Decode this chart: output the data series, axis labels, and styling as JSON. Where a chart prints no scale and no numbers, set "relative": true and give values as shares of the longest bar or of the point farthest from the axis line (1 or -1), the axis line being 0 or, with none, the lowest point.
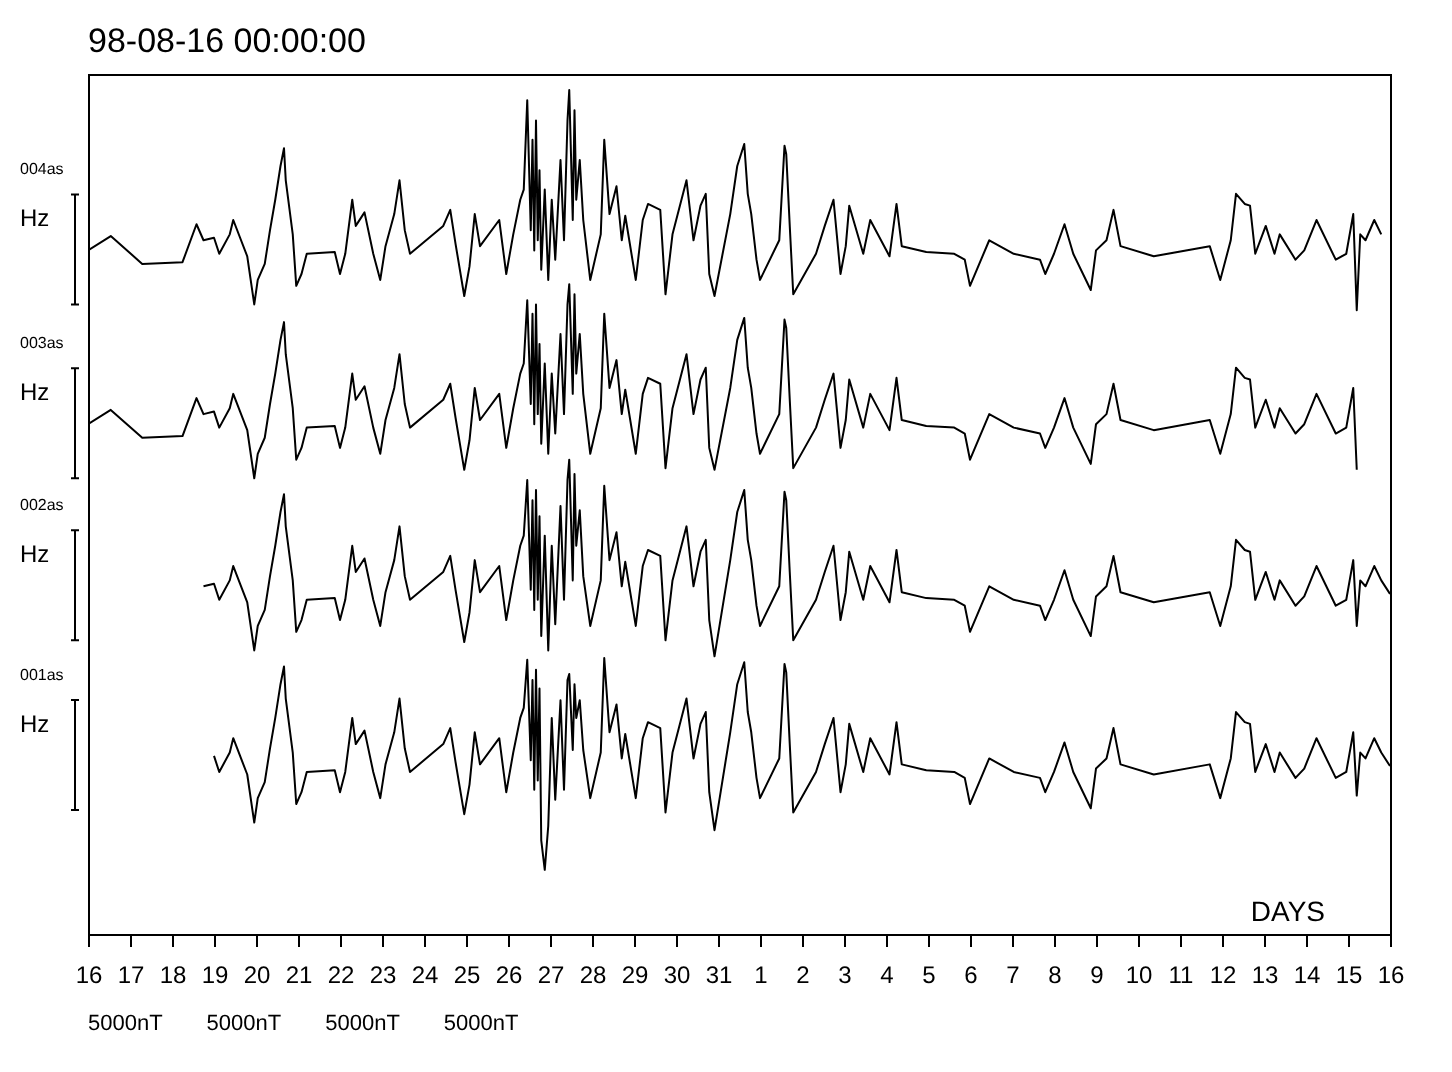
{
  "chart_data": {
    "type": "line",
    "title": "98-08-16 00:00:00",
    "xlabel": "DAYS",
    "relative": true,
    "annotations": [
      "004as",
      "Hz",
      "003as",
      "Hz",
      "002as",
      "Hz",
      "001as",
      "Hz",
      "5000nT",
      "5000nT",
      "5000nT",
      "5000nT"
    ],
    "xlim": [
      "--08-16",
      "--09-16"
    ],
    "xticks": [
      {
        "value": "--08-16",
        "label": "16"
      },
      {
        "value": "--08-17",
        "label": "17"
      },
      {
        "value": "--08-18",
        "label": "18"
      },
      {
        "value": "--08-19",
        "label": "19"
      },
      {
        "value": "--08-20",
        "label": "20"
      },
      {
        "value": "--08-21",
        "label": "21"
      },
      {
        "value": "--08-22",
        "label": "22"
      },
      {
        "value": "--08-23",
        "label": "23"
      },
      {
        "value": "--08-24",
        "label": "24"
      },
      {
        "value": "--08-25",
        "label": "25"
      },
      {
        "value": "--08-26",
        "label": "26"
      },
      {
        "value": "--08-27",
        "label": "27"
      },
      {
        "value": "--08-28",
        "label": "28"
      },
      {
        "value": "--08-29",
        "label": "29"
      },
      {
        "value": "--08-30",
        "label": "30"
      },
      {
        "value": "--08-31",
        "label": "31"
      },
      {
        "value": "--09-01",
        "label": "1"
      },
      {
        "value": "--09-02",
        "label": "2"
      },
      {
        "value": "--09-03",
        "label": "3"
      },
      {
        "value": "--09-04",
        "label": "4"
      },
      {
        "value": "--09-05",
        "label": "5"
      },
      {
        "value": "--09-06",
        "label": "6"
      },
      {
        "value": "--09-07",
        "label": "7"
      },
      {
        "value": "--09-08",
        "label": "8"
      },
      {
        "value": "--09-09",
        "label": "9"
      },
      {
        "value": "--09-10",
        "label": "10"
      },
      {
        "value": "--09-11",
        "label": "11"
      },
      {
        "value": "--09-12",
        "label": "12"
      },
      {
        "value": "--09-13",
        "label": "13"
      },
      {
        "value": "--09-14",
        "label": "14"
      },
      {
        "value": "--09-15",
        "label": "15"
      },
      {
        "value": "--09-16",
        "label": "16"
      }
    ],
    "x": [
      "--08-16T00:00",
      "--08-16T13:00",
      "--08-17T07:00",
      "--08-18T06:00",
      "--08-18T14:00",
      "--08-18T18:00",
      "--08-19T00:00",
      "--08-19T03:00",
      "--08-19T09:00",
      "--08-19T11:00",
      "--08-19T19:00",
      "--08-19T23:00",
      "--08-20T01:00",
      "--08-20T05:00",
      "--08-20T08:00",
      "--08-20T11:00",
      "--08-20T14:00",
      "--08-20T16:00",
      "--08-20T17:00",
      "--08-20T21:00",
      "--08-20T23:00",
      "--08-21T02:00",
      "--08-21T05:00",
      "--08-21T21:00",
      "--08-22T00:00",
      "--08-22T03:00",
      "--08-22T07:00",
      "--08-22T09:00",
      "--08-22T14:00",
      "--08-22T19:00",
      "--08-22T23:00",
      "--08-23T02:00",
      "--08-23T07:00",
      "--08-23T10:00",
      "--08-23T13:00",
      "--08-23T16:00",
      "--08-24T11:00",
      "--08-24T15:00",
      "--08-24T18:00",
      "--08-24T23:00",
      "--08-25T02:00",
      "--08-25T05:00",
      "--08-25T08:00",
      "--08-25T19:00",
      "--08-25T23:00",
      "--08-26T03:00",
      "--08-26T07:00",
      "--08-26T09:00",
      "--08-26T11:00",
      "--08-26T13:00",
      "--08-26T14:00",
      "--08-26T15:00",
      "--08-26T16:00",
      "--08-26T17:00",
      "--08-26T18:00",
      "--08-26T19:00",
      "--08-26T21:00",
      "--08-26T23:00",
      "--08-27T01:00",
      "--08-27T03:00",
      "--08-27T06:00",
      "--08-27T08:00",
      "--08-27T10:00",
      "--08-27T11:00",
      "--08-27T13:00",
      "--08-27T14:00",
      "--08-27T15:00",
      "--08-27T17:00",
      "--08-27T19:00",
      "--08-27T23:00",
      "--08-28T05:00",
      "--08-28T07:00",
      "--08-28T10:00",
      "--08-28T14:00",
      "--08-28T17:00",
      "--08-28T19:00",
      "--08-29T01:00",
      "--08-29T05:00",
      "--08-29T08:00",
      "--08-29T15:00",
      "--08-29T18:00",
      "--08-29T22:00",
      "--08-30T06:00",
      "--08-30T10:00",
      "--08-30T14:00",
      "--08-30T17:00",
      "--08-30T19:00",
      "--08-30T22:00",
      "--08-31T07:00",
      "--08-31T11:00",
      "--08-31T15:00",
      "--08-31T17:00",
      "--08-31T19:00",
      "--08-31T22:00",
      "--09-01T00:00",
      "--09-01T11:00",
      "--09-01T14:00",
      "--09-01T15:00",
      "--09-01T17:00",
      "--09-01T19:00",
      "--09-02T08:00",
      "--09-02T13:00",
      "--09-02T18:00",
      "--09-02T22:00",
      "--09-03T01:00",
      "--09-03T03:00",
      "--09-03T11:00",
      "--09-03T15:00",
      "--09-04T02:00",
      "--09-04T06:00",
      "--09-04T09:00",
      "--09-04T23:00",
      "--09-05T15:00",
      "--09-05T21:00",
      "--09-06T00:00",
      "--09-06T11:00",
      "--09-07T01:00",
      "--09-07T16:00",
      "--09-07T19:00",
      "--09-08T00:00",
      "--09-08T06:00",
      "--09-08T11:00",
      "--09-08T21:00",
      "--09-09T00:00",
      "--09-09T06:00",
      "--09-09T10:00",
      "--09-09T14:00",
      "--09-10T09:00",
      "--09-11T17:00",
      "--09-11T23:00",
      "--09-12T05:00",
      "--09-12T08:00",
      "--09-12T13:00",
      "--09-12T16:00",
      "--09-12T19:00",
      "--09-13T01:00",
      "--09-13T06:00",
      "--09-13T09:00",
      "--09-13T18:00",
      "--09-13T23:00",
      "--09-14T06:00",
      "--09-14T17:00",
      "--09-14T23:00",
      "--09-15T03:00",
      "--09-15T05:00",
      "--09-15T07:00",
      "--09-15T10:00",
      "--09-15T15:00",
      "--09-15T19:00",
      "--09-16T00:00"
    ],
    "series": [
      {
        "color": "#000000",
        "values": [
          0.81,
          0.827,
          0.794,
          0.796,
          0.841,
          0.822,
          0.825,
          0.806,
          0.829,
          0.846,
          0.803,
          0.746,
          0.775,
          0.794,
          0.834,
          0.87,
          0.91,
          0.931,
          0.893,
          0.829,
          0.768,
          0.782,
          0.806,
          0.808,
          0.782,
          0.806,
          0.87,
          0.839,
          0.855,
          0.806,
          0.775,
          0.815,
          0.853,
          0.893,
          0.834,
          0.806,
          0.839,
          0.858,
          0.818,
          0.756,
          0.791,
          0.853,
          0.815,
          0.846,
          0.782,
          0.829,
          0.87,
          0.882,
          0.988,
          0.834,
          0.941,
          0.81,
          0.964,
          0.822,
          0.905,
          0.787,
          0.882,
          0.775,
          0.87,
          0.799,
          0.917,
          0.822,
          0.964,
          1.0,
          0.846,
          0.976,
          0.87,
          0.917,
          0.846,
          0.775,
          0.829,
          0.941,
          0.853,
          0.886,
          0.822,
          0.851,
          0.775,
          0.846,
          0.865,
          0.858,
          0.758,
          0.829,
          0.893,
          0.822,
          0.863,
          0.877,
          0.782,
          0.756,
          0.853,
          0.91,
          0.936,
          0.877,
          0.853,
          0.799,
          0.775,
          0.822,
          0.934,
          0.924,
          0.839,
          0.758,
          0.806,
          0.839,
          0.87,
          0.782,
          0.815,
          0.863,
          0.806,
          0.846,
          0.803,
          0.865,
          0.815,
          0.808,
          0.806,
          0.799,
          0.768,
          0.822,
          0.806,
          0.799,
          0.782,
          0.806,
          0.841,
          0.806,
          0.763,
          0.81,
          0.822,
          0.858,
          0.815,
          0.803,
          0.815,
          0.775,
          0.822,
          0.877,
          0.865,
          0.863,
          0.806,
          0.839,
          0.806,
          0.829,
          0.799,
          0.81,
          0.846,
          0.799,
          0.806,
          0.853,
          0.739,
          0.829,
          0.822,
          0.846,
          0.829,
          null
        ]
      },
      {
        "color": "#000000",
        "values": [
          0.604,
          0.621,
          0.588,
          0.59,
          0.635,
          0.616,
          0.619,
          0.6,
          0.623,
          0.64,
          0.597,
          0.54,
          0.569,
          0.588,
          0.628,
          0.664,
          0.704,
          0.725,
          0.687,
          0.623,
          0.562,
          0.576,
          0.6,
          0.602,
          0.576,
          0.6,
          0.664,
          0.633,
          0.649,
          0.6,
          0.569,
          0.609,
          0.647,
          0.687,
          0.628,
          0.6,
          0.633,
          0.652,
          0.612,
          0.55,
          0.585,
          0.647,
          0.609,
          0.64,
          0.576,
          0.623,
          0.664,
          0.676,
          0.751,
          0.628,
          0.735,
          0.604,
          0.746,
          0.616,
          0.699,
          0.581,
          0.676,
          0.569,
          0.664,
          0.593,
          0.711,
          0.616,
          0.746,
          0.77,
          0.64,
          0.758,
          0.664,
          0.711,
          0.64,
          0.569,
          0.623,
          0.735,
          0.647,
          0.68,
          0.616,
          0.645,
          0.569,
          0.64,
          0.659,
          0.652,
          0.552,
          0.623,
          0.687,
          0.616,
          0.657,
          0.671,
          0.576,
          0.55,
          0.647,
          0.704,
          0.73,
          0.671,
          0.647,
          0.593,
          0.569,
          0.616,
          0.728,
          0.718,
          0.633,
          0.552,
          0.6,
          0.633,
          0.664,
          0.576,
          0.609,
          0.657,
          0.6,
          0.64,
          0.597,
          0.659,
          0.609,
          0.602,
          0.6,
          0.593,
          0.562,
          0.616,
          0.6,
          0.593,
          0.576,
          0.6,
          0.635,
          0.6,
          0.557,
          0.604,
          0.616,
          0.652,
          0.609,
          0.597,
          0.609,
          0.569,
          0.616,
          0.671,
          0.659,
          0.657,
          0.6,
          0.633,
          0.6,
          0.623,
          0.593,
          0.604,
          0.64,
          0.593,
          0.6,
          0.647,
          0.55,
          null,
          null,
          null,
          null,
          null
        ]
      },
      {
        "color": "#000000",
        "values": [
          null,
          null,
          null,
          null,
          null,
          0.412,
          0.415,
          0.396,
          0.419,
          0.436,
          0.393,
          0.336,
          0.365,
          0.384,
          0.424,
          0.46,
          0.5,
          0.521,
          0.483,
          0.419,
          0.358,
          0.372,
          0.396,
          0.398,
          0.372,
          0.396,
          0.46,
          0.429,
          0.445,
          0.396,
          0.365,
          0.405,
          0.443,
          0.483,
          0.424,
          0.396,
          0.429,
          0.448,
          0.408,
          0.346,
          0.381,
          0.443,
          0.405,
          0.436,
          0.372,
          0.419,
          0.46,
          0.472,
          0.538,
          0.408,
          0.514,
          0.384,
          0.526,
          0.396,
          0.495,
          0.353,
          0.472,
          0.336,
          0.46,
          0.367,
          0.507,
          0.396,
          0.538,
          0.562,
          0.419,
          0.545,
          0.46,
          0.502,
          0.424,
          0.365,
          0.419,
          0.531,
          0.443,
          0.476,
          0.412,
          0.441,
          0.365,
          0.436,
          0.455,
          0.448,
          0.348,
          0.419,
          0.483,
          0.412,
          0.453,
          0.467,
          0.372,
          0.329,
          0.443,
          0.5,
          0.526,
          0.467,
          0.443,
          0.389,
          0.365,
          0.412,
          0.524,
          0.514,
          0.429,
          0.348,
          0.396,
          0.429,
          0.46,
          0.372,
          0.405,
          0.453,
          0.396,
          0.436,
          0.393,
          0.455,
          0.405,
          0.398,
          0.396,
          0.389,
          0.358,
          0.412,
          0.396,
          0.389,
          0.372,
          0.396,
          0.431,
          0.396,
          0.353,
          0.4,
          0.412,
          0.448,
          0.405,
          0.393,
          0.405,
          0.365,
          0.412,
          0.467,
          0.455,
          0.453,
          0.396,
          0.429,
          0.396,
          0.419,
          0.389,
          0.4,
          0.436,
          0.389,
          0.396,
          0.443,
          0.365,
          0.419,
          0.412,
          0.436,
          0.419,
          0.403
        ]
      },
      {
        "color": "#000000",
        "values": [
          null,
          null,
          null,
          null,
          null,
          null,
          0.211,
          0.192,
          0.215,
          0.232,
          0.189,
          0.132,
          0.161,
          0.18,
          0.22,
          0.256,
          0.296,
          0.317,
          0.279,
          0.215,
          0.154,
          0.168,
          0.192,
          0.194,
          0.168,
          0.192,
          0.256,
          0.225,
          0.241,
          0.192,
          0.161,
          0.201,
          0.239,
          0.279,
          0.22,
          0.192,
          0.225,
          0.244,
          0.204,
          0.142,
          0.177,
          0.239,
          0.201,
          0.232,
          0.168,
          0.215,
          0.256,
          0.268,
          0.325,
          0.206,
          0.301,
          0.171,
          0.313,
          0.182,
          0.291,
          0.111,
          0.076,
          0.128,
          0.256,
          0.159,
          0.277,
          0.171,
          0.301,
          0.308,
          0.218,
          0.296,
          0.256,
          0.277,
          0.218,
          0.161,
          0.215,
          0.327,
          0.239,
          0.272,
          0.208,
          0.237,
          0.161,
          0.232,
          0.251,
          0.244,
          0.144,
          0.215,
          0.279,
          0.208,
          0.249,
          0.263,
          0.168,
          0.123,
          0.239,
          0.296,
          0.322,
          0.263,
          0.239,
          0.185,
          0.161,
          0.208,
          0.32,
          0.31,
          0.225,
          0.144,
          0.192,
          0.225,
          0.256,
          0.168,
          0.201,
          0.249,
          0.192,
          0.232,
          0.189,
          0.251,
          0.201,
          0.194,
          0.192,
          0.185,
          0.154,
          0.208,
          0.192,
          0.185,
          0.168,
          0.192,
          0.227,
          0.192,
          0.149,
          0.196,
          0.208,
          0.244,
          0.201,
          0.189,
          0.201,
          0.161,
          0.208,
          0.263,
          0.251,
          0.249,
          0.192,
          0.225,
          0.192,
          0.215,
          0.185,
          0.196,
          0.232,
          0.185,
          0.192,
          0.239,
          0.164,
          0.215,
          0.208,
          0.232,
          0.215,
          0.199
        ]
      }
    ]
  }
}
